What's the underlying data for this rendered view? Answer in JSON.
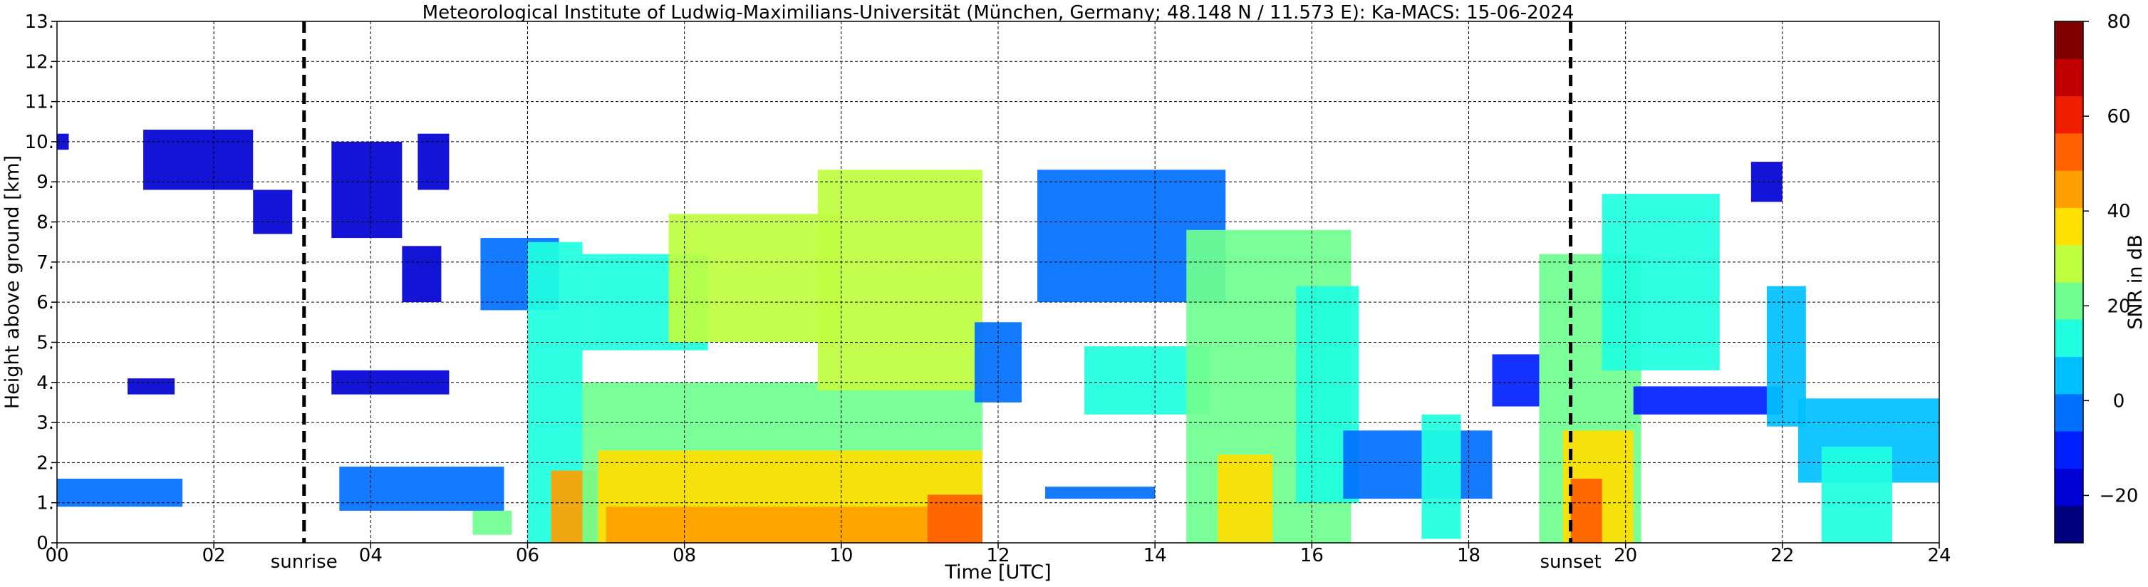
{
  "chart_data": [
    {
      "type": "heatmap",
      "title": "Meteorological Institute of Ludwig-Maximilians-Universität (München, Germany; 48.148 N / 11.573 E):    Ka-MACS: 15-06-2024",
      "xlabel": "Time [UTC]",
      "ylabel": "Height above ground [km]",
      "xlim": [
        0,
        24
      ],
      "ylim": [
        0,
        13
      ],
      "x_ticks": [
        "00",
        "02",
        "04",
        "06",
        "08",
        "10",
        "12",
        "14",
        "16",
        "18",
        "20",
        "22",
        "24"
      ],
      "y_ticks": [
        "0.",
        "1.",
        "2.",
        "3.",
        "4.",
        "5.",
        "6.",
        "7.",
        "8.",
        "9.",
        "10.",
        "11.",
        "12.",
        "13."
      ],
      "grid": true,
      "annotations": [
        {
          "label": "sunrise",
          "time": 3.15
        },
        {
          "label": "sunset",
          "time": 19.3
        }
      ],
      "echo_regions": [
        {
          "t0": 0.0,
          "t1": 1.6,
          "h0": 0.9,
          "h1": 1.6,
          "snr": -5
        },
        {
          "t0": 0.0,
          "t1": 0.15,
          "h0": 9.8,
          "h1": 10.2,
          "snr": -15
        },
        {
          "t0": 1.1,
          "t1": 2.5,
          "h0": 8.8,
          "h1": 10.3,
          "snr": -15
        },
        {
          "t0": 0.9,
          "t1": 1.5,
          "h0": 3.7,
          "h1": 4.1,
          "snr": -15
        },
        {
          "t0": 2.5,
          "t1": 3.0,
          "h0": 7.7,
          "h1": 8.8,
          "snr": -15
        },
        {
          "t0": 3.5,
          "t1": 4.4,
          "h0": 7.6,
          "h1": 10.0,
          "snr": -15
        },
        {
          "t0": 3.5,
          "t1": 5.0,
          "h0": 3.7,
          "h1": 4.3,
          "snr": -15
        },
        {
          "t0": 4.6,
          "t1": 5.0,
          "h0": 8.8,
          "h1": 10.2,
          "snr": -15
        },
        {
          "t0": 4.4,
          "t1": 4.9,
          "h0": 6.0,
          "h1": 7.4,
          "snr": -15
        },
        {
          "t0": 3.6,
          "t1": 5.7,
          "h0": 0.8,
          "h1": 1.9,
          "snr": -5
        },
        {
          "t0": 5.3,
          "t1": 5.8,
          "h0": 0.2,
          "h1": 0.8,
          "snr": 20
        },
        {
          "t0": 5.4,
          "t1": 6.4,
          "h0": 5.8,
          "h1": 7.6,
          "snr": 0
        },
        {
          "t0": 6.0,
          "t1": 6.7,
          "h0": 0.0,
          "h1": 7.5,
          "snr": 15
        },
        {
          "t0": 6.3,
          "t1": 6.9,
          "h0": 0.0,
          "h1": 1.8,
          "snr": 45
        },
        {
          "t0": 6.7,
          "t1": 8.3,
          "h0": 4.8,
          "h1": 7.2,
          "snr": 15
        },
        {
          "t0": 7.8,
          "t1": 10.0,
          "h0": 5.0,
          "h1": 8.2,
          "snr": 25
        },
        {
          "t0": 6.7,
          "t1": 11.8,
          "h0": 0.0,
          "h1": 4.0,
          "snr": 20
        },
        {
          "t0": 6.9,
          "t1": 11.8,
          "h0": 0.0,
          "h1": 2.3,
          "snr": 35
        },
        {
          "t0": 7.0,
          "t1": 11.7,
          "h0": 0.0,
          "h1": 0.9,
          "snr": 45
        },
        {
          "t0": 9.7,
          "t1": 11.8,
          "h0": 3.8,
          "h1": 9.3,
          "snr": 25
        },
        {
          "t0": 11.1,
          "t1": 11.8,
          "h0": 0.0,
          "h1": 1.2,
          "snr": 55
        },
        {
          "t0": 11.7,
          "t1": 12.3,
          "h0": 3.5,
          "h1": 5.5,
          "snr": 0
        },
        {
          "t0": 12.5,
          "t1": 14.9,
          "h0": 6.0,
          "h1": 9.3,
          "snr": 0
        },
        {
          "t0": 13.1,
          "t1": 14.7,
          "h0": 3.2,
          "h1": 4.9,
          "snr": 15
        },
        {
          "t0": 12.6,
          "t1": 14.0,
          "h0": 1.1,
          "h1": 1.4,
          "snr": -5
        },
        {
          "t0": 14.4,
          "t1": 16.5,
          "h0": 0.0,
          "h1": 7.8,
          "snr": 20
        },
        {
          "t0": 14.8,
          "t1": 15.5,
          "h0": 0.0,
          "h1": 2.2,
          "snr": 40
        },
        {
          "t0": 15.8,
          "t1": 16.6,
          "h0": 1.0,
          "h1": 6.4,
          "snr": 15
        },
        {
          "t0": 16.4,
          "t1": 18.3,
          "h0": 1.1,
          "h1": 2.8,
          "snr": 0
        },
        {
          "t0": 17.4,
          "t1": 17.9,
          "h0": 0.1,
          "h1": 3.2,
          "snr": 10
        },
        {
          "t0": 18.3,
          "t1": 18.9,
          "h0": 3.4,
          "h1": 4.7,
          "snr": -10
        },
        {
          "t0": 18.9,
          "t1": 20.2,
          "h0": 0.0,
          "h1": 7.2,
          "snr": 20
        },
        {
          "t0": 19.2,
          "t1": 20.1,
          "h0": 0.0,
          "h1": 2.8,
          "snr": 35
        },
        {
          "t0": 19.3,
          "t1": 19.7,
          "h0": 0.0,
          "h1": 1.6,
          "snr": 50
        },
        {
          "t0": 19.7,
          "t1": 21.2,
          "h0": 4.3,
          "h1": 8.7,
          "snr": 15
        },
        {
          "t0": 20.1,
          "t1": 22.0,
          "h0": 3.2,
          "h1": 3.9,
          "snr": -10
        },
        {
          "t0": 21.6,
          "t1": 22.0,
          "h0": 8.5,
          "h1": 9.5,
          "snr": -15
        },
        {
          "t0": 21.8,
          "t1": 22.3,
          "h0": 2.9,
          "h1": 6.4,
          "snr": 5
        },
        {
          "t0": 22.2,
          "t1": 24.0,
          "h0": 1.5,
          "h1": 3.6,
          "snr": 5
        },
        {
          "t0": 22.5,
          "t1": 23.4,
          "h0": 0.0,
          "h1": 2.4,
          "snr": 10
        }
      ]
    },
    {
      "type": "colorbar",
      "label": "SNR in dB",
      "range": [
        -30,
        80
      ],
      "ticks": [
        "80",
        "60",
        "40",
        "20",
        "0",
        "−20"
      ],
      "tick_values": [
        80,
        60,
        40,
        20,
        0,
        -20
      ],
      "colors": [
        "#00007f",
        "#0000d4",
        "#0020ff",
        "#0070ff",
        "#00c0ff",
        "#20ffdf",
        "#70ff8f",
        "#bfff40",
        "#ffe000",
        "#ffa000",
        "#ff6000",
        "#f01c00",
        "#c00000",
        "#7f0000"
      ]
    }
  ]
}
